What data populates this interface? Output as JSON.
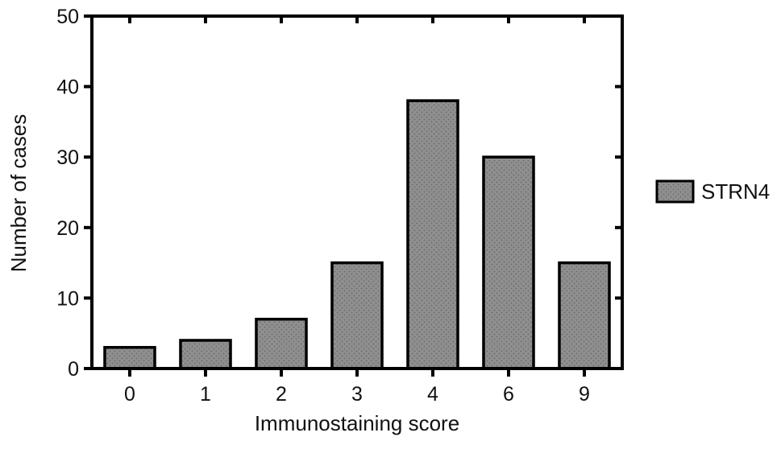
{
  "chart_data": {
    "type": "bar",
    "title": "",
    "xlabel": "Immunostaining score",
    "ylabel": "Number of cases",
    "categories": [
      "0",
      "1",
      "2",
      "3",
      "4",
      "6",
      "9"
    ],
    "series": [
      {
        "name": "STRN4",
        "values": [
          3,
          4,
          7,
          15,
          38,
          30,
          15
        ]
      }
    ],
    "ylim": [
      0,
      50
    ],
    "yticks": [
      0,
      10,
      20,
      30,
      40,
      50
    ],
    "grid": false,
    "legend_position": "right",
    "bar_color": "#8c8c8c",
    "bar_edge_color": "#000000"
  }
}
